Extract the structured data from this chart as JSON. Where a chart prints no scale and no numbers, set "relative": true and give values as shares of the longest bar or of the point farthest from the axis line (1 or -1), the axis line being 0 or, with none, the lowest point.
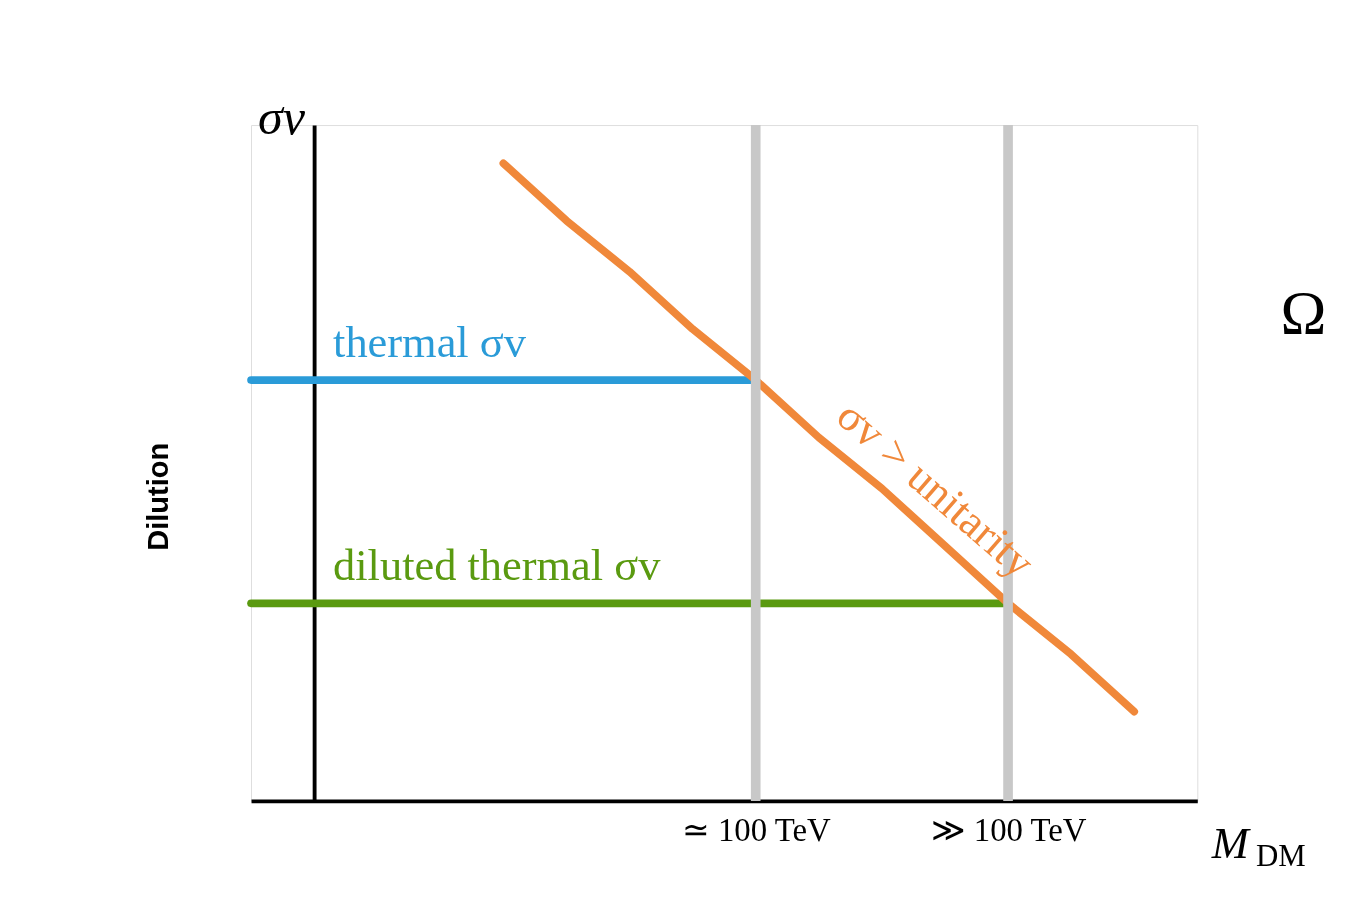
{
  "chart_data": {
    "type": "line",
    "relative": true,
    "ylabel": "σv",
    "xlabel": "M$_{DM}$",
    "categories": [
      null,
      null,
      null,
      null,
      null,
      null,
      null,
      null,
      "≃ 100 TeV",
      null,
      null,
      null,
      "≫ 100 TeV",
      null,
      null,
      null
    ],
    "series": [
      {
        "name": "thermal σv",
        "color": "#2a9bd8",
        "values": [
          0.66,
          0.66,
          0.66,
          0.66,
          0.66,
          0.66,
          0.66,
          0.66,
          0.66,
          null,
          null,
          null,
          null,
          null,
          null,
          null
        ]
      },
      {
        "name": "diluted thermal σv",
        "color": "#5a9a10",
        "values": [
          0.31,
          0.31,
          0.31,
          0.31,
          0.31,
          0.31,
          0.31,
          0.31,
          0.31,
          0.31,
          0.31,
          0.31,
          0.31,
          null,
          null,
          null
        ]
      },
      {
        "name": "σv > unitarity",
        "color": "#f0883a",
        "values": [
          null,
          null,
          null,
          null,
          1,
          0.91,
          0.83,
          0.74,
          0.66,
          0.57,
          0.49,
          0.4,
          0.31,
          0.23,
          0.14,
          null
        ]
      }
    ],
    "ref_lines": [
      {
        "axis": "x",
        "value": "≃ 100 TeV",
        "color": "#c8c8c8"
      },
      {
        "axis": "x",
        "value": "≫ 100 TeV",
        "color": "#c8c8c8"
      }
    ],
    "annotations": [
      "Dilution",
      "Ω"
    ],
    "grid": false,
    "legend": false,
    "marker": "none",
    "line_style": "solid"
  }
}
